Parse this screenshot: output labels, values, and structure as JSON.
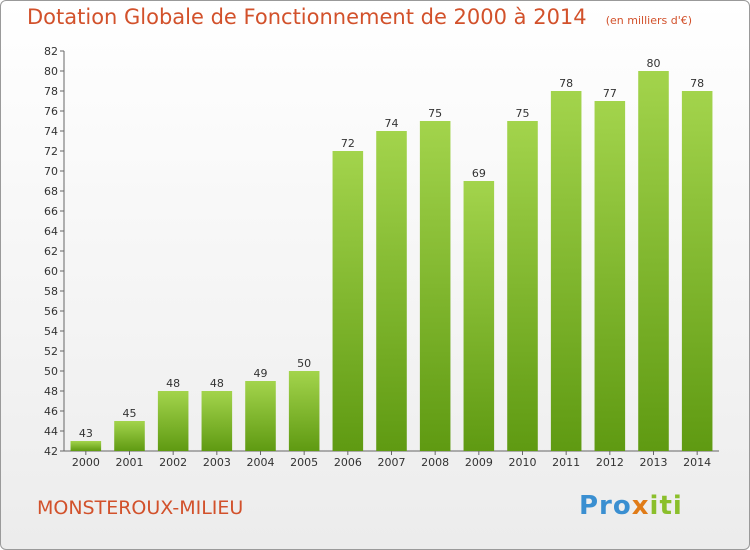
{
  "header": {
    "title": "Dotation Globale de Fonctionnement de 2000 à 2014",
    "subtitle": "(en milliers d'€)"
  },
  "footer": {
    "place": "MONSTEROUX-MILIEU",
    "logo_text": "Proxiti"
  },
  "colors": {
    "title": "#d2512b",
    "bar_light": "#a3d44c",
    "bar_dark": "#5f9a12"
  },
  "chart_data": {
    "type": "bar",
    "title": "Dotation Globale de Fonctionnement de 2000 à 2014",
    "subtitle": "(en milliers d'€)",
    "categories": [
      "2000",
      "2001",
      "2002",
      "2003",
      "2004",
      "2005",
      "2006",
      "2007",
      "2008",
      "2009",
      "2010",
      "2011",
      "2012",
      "2013",
      "2014"
    ],
    "values": [
      43,
      45,
      48,
      48,
      49,
      50,
      72,
      74,
      75,
      69,
      75,
      78,
      77,
      80,
      78
    ],
    "ylim": [
      42,
      82
    ],
    "yticks": [
      42,
      44,
      46,
      48,
      50,
      52,
      54,
      56,
      58,
      60,
      62,
      64,
      66,
      68,
      70,
      72,
      74,
      76,
      78,
      80,
      82
    ],
    "grid": false,
    "xlabel": "",
    "ylabel": ""
  }
}
